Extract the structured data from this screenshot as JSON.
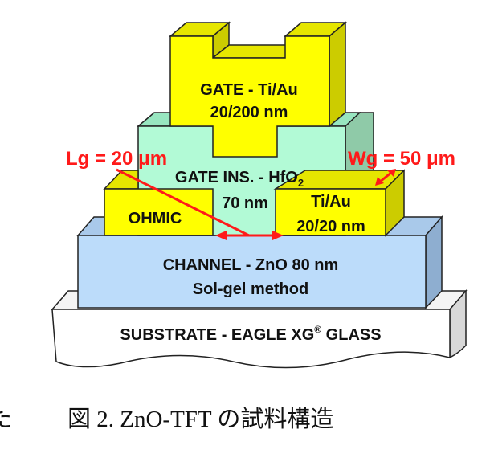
{
  "diagram": {
    "layers": {
      "substrate": "SUBSTRATE - EAGLE XG",
      "substrate_mark": "®",
      "substrate_suffix": " GLASS",
      "channel_line1": "CHANNEL - ZnO 80 nm",
      "channel_line2": "Sol-gel method",
      "ohmic": "OHMIC",
      "contact_line1": "Ti/Au",
      "contact_line2": "20/20 nm",
      "gate_ins": "GATE INS. - HfO",
      "gate_ins_sub": "2",
      "gate_ins_thickness": "70 nm",
      "gate_line1": "GATE - Ti/Au",
      "gate_line2": "20/200 nm"
    },
    "annotations": {
      "lg": "Lg = 20 μm",
      "wg": "Wg = 50 μm"
    },
    "colors": {
      "metal": "#ffff00",
      "gate_insulator": "#b2fad6",
      "channel": "#bcdcfa",
      "annotation": "#ff1a1a"
    }
  },
  "caption": {
    "left_fragment": "た",
    "text": "図 2.  ZnO-TFT の試料構造"
  }
}
